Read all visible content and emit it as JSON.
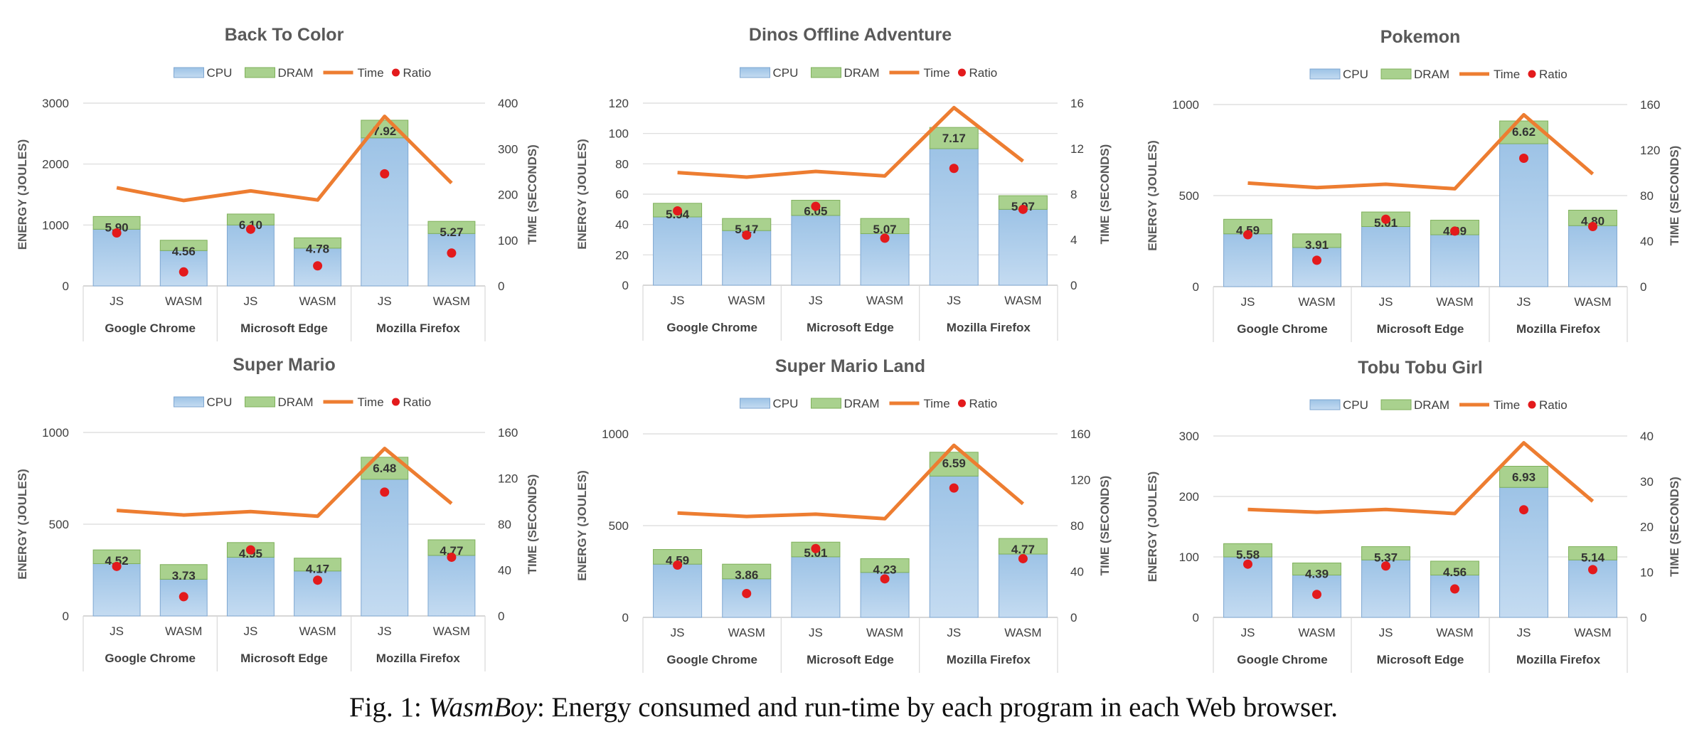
{
  "caption": {
    "prefix": "Fig. 1: ",
    "italic": "WasmBoy",
    "rest": ": Energy consumed and run-time by each program in each Web browser."
  },
  "legend": [
    "CPU",
    "DRAM",
    "Time",
    "Ratio"
  ],
  "colors": {
    "cpu": "#9dc3e6",
    "cpu_edge": "#7fa7d1",
    "dram": "#a9d18e",
    "dram_edge": "#7fb05b",
    "time": "#ed7d31",
    "ratio": "#e31a1c"
  },
  "chart_data": [
    {
      "type": "bar",
      "title": "Back To Color",
      "categories": [
        "JS",
        "WASM",
        "JS",
        "WASM",
        "JS",
        "WASM"
      ],
      "groups": [
        "Google Chrome",
        "Microsoft Edge",
        "Mozilla Firefox"
      ],
      "ylabel": "ENERGY (JOULES)",
      "y2label": "TIME (SECONDS)",
      "ylim": [
        0,
        3000
      ],
      "yticks": [
        0,
        1000,
        2000,
        3000
      ],
      "y2lim": [
        0,
        400
      ],
      "y2ticks": [
        0,
        100,
        200,
        300,
        400
      ],
      "series": [
        {
          "name": "CPU",
          "values": [
            930,
            580,
            1000,
            620,
            2430,
            860
          ]
        },
        {
          "name": "DRAM",
          "values": [
            210,
            170,
            180,
            170,
            290,
            200
          ]
        },
        {
          "name": "Time",
          "values": [
            215,
            187,
            208,
            188,
            371,
            225
          ]
        },
        {
          "name": "Ratio",
          "values": [
            5.9,
            4.56,
            6.1,
            4.78,
            7.92,
            5.27
          ]
        }
      ],
      "ratio_y": [
        870,
        230,
        930,
        330,
        1840,
        540
      ]
    },
    {
      "type": "bar",
      "title": "Dinos Offline Adventure",
      "categories": [
        "JS",
        "WASM",
        "JS",
        "WASM",
        "JS",
        "WASM"
      ],
      "groups": [
        "Google Chrome",
        "Microsoft Edge",
        "Mozilla Firefox"
      ],
      "ylabel": "ENERGY (JOULES)",
      "y2label": "TIME (SECONDS)",
      "ylim": [
        0,
        120
      ],
      "yticks": [
        0,
        20,
        40,
        60,
        80,
        100,
        120
      ],
      "y2lim": [
        0,
        16
      ],
      "y2ticks": [
        0,
        4,
        8,
        12,
        16
      ],
      "series": [
        {
          "name": "CPU",
          "values": [
            45,
            36,
            46,
            34,
            90,
            50
          ]
        },
        {
          "name": "DRAM",
          "values": [
            9,
            8,
            10,
            10,
            14,
            9
          ]
        },
        {
          "name": "Time",
          "values": [
            9.9,
            9.5,
            10.0,
            9.6,
            15.6,
            10.9
          ]
        },
        {
          "name": "Ratio",
          "values": [
            5.94,
            5.17,
            6.05,
            5.07,
            7.17,
            5.97
          ]
        }
      ],
      "ratio_y": [
        49,
        33,
        52,
        31,
        77,
        50
      ]
    },
    {
      "type": "bar",
      "title": "Pokemon",
      "categories": [
        "JS",
        "WASM",
        "JS",
        "WASM",
        "JS",
        "WASM"
      ],
      "groups": [
        "Google Chrome",
        "Microsoft Edge",
        "Mozilla Firefox"
      ],
      "ylabel": "ENERGY (JOULES)",
      "y2label": "TIME (SECONDS)",
      "ylim": [
        0,
        1000
      ],
      "yticks": [
        0,
        500,
        1000
      ],
      "y2lim": [
        0,
        160
      ],
      "y2ticks": [
        0,
        40,
        80,
        120,
        160
      ],
      "series": [
        {
          "name": "CPU",
          "values": [
            290,
            215,
            330,
            285,
            785,
            335
          ]
        },
        {
          "name": "DRAM",
          "values": [
            80,
            75,
            80,
            80,
            125,
            85
          ]
        },
        {
          "name": "Time",
          "values": [
            91,
            87,
            90,
            86,
            151,
            99
          ]
        },
        {
          "name": "Ratio",
          "values": [
            4.59,
            3.91,
            5.01,
            4.69,
            6.62,
            4.8
          ]
        }
      ],
      "ratio_y": [
        285,
        145,
        370,
        305,
        705,
        330
      ]
    },
    {
      "type": "bar",
      "title": "Super Mario",
      "categories": [
        "JS",
        "WASM",
        "JS",
        "WASM",
        "JS",
        "WASM"
      ],
      "groups": [
        "Google Chrome",
        "Microsoft Edge",
        "Mozilla Firefox"
      ],
      "ylabel": "ENERGY (JOULES)",
      "y2label": "TIME (SECONDS)",
      "ylim": [
        0,
        1000
      ],
      "yticks": [
        0,
        500,
        1000
      ],
      "y2lim": [
        0,
        160
      ],
      "y2ticks": [
        0,
        40,
        80,
        120,
        160
      ],
      "series": [
        {
          "name": "CPU",
          "values": [
            285,
            200,
            320,
            245,
            745,
            330
          ]
        },
        {
          "name": "DRAM",
          "values": [
            75,
            80,
            80,
            70,
            120,
            85
          ]
        },
        {
          "name": "Time",
          "values": [
            92,
            88,
            91,
            87,
            146,
            98
          ]
        },
        {
          "name": "Ratio",
          "values": [
            4.52,
            3.73,
            4.95,
            4.17,
            6.48,
            4.77
          ]
        }
      ],
      "ratio_y": [
        270,
        105,
        360,
        195,
        675,
        320
      ]
    },
    {
      "type": "bar",
      "title": "Super Mario Land",
      "categories": [
        "JS",
        "WASM",
        "JS",
        "WASM",
        "JS",
        "WASM"
      ],
      "groups": [
        "Google Chrome",
        "Microsoft Edge",
        "Mozilla Firefox"
      ],
      "ylabel": "ENERGY (JOULES)",
      "y2label": "TIME (SECONDS)",
      "ylim": [
        0,
        1000
      ],
      "yticks": [
        0,
        500,
        1000
      ],
      "y2lim": [
        0,
        160
      ],
      "y2ticks": [
        0,
        40,
        80,
        120,
        160
      ],
      "series": [
        {
          "name": "CPU",
          "values": [
            290,
            210,
            330,
            245,
            770,
            345
          ]
        },
        {
          "name": "DRAM",
          "values": [
            80,
            80,
            80,
            75,
            130,
            85
          ]
        },
        {
          "name": "Time",
          "values": [
            91,
            88,
            90,
            86,
            150,
            99
          ]
        },
        {
          "name": "Ratio",
          "values": [
            4.59,
            3.86,
            5.01,
            4.23,
            6.59,
            4.77
          ]
        }
      ],
      "ratio_y": [
        285,
        130,
        375,
        210,
        705,
        320
      ]
    },
    {
      "type": "bar",
      "title": "Tobu Tobu Girl",
      "categories": [
        "JS",
        "WASM",
        "JS",
        "WASM",
        "JS",
        "WASM"
      ],
      "groups": [
        "Google Chrome",
        "Microsoft Edge",
        "Mozilla Firefox"
      ],
      "ylabel": "ENERGY (JOULES)",
      "y2label": "TIME (SECONDS)",
      "ylim": [
        0,
        300
      ],
      "yticks": [
        0,
        100,
        200,
        300
      ],
      "y2lim": [
        0,
        40
      ],
      "y2ticks": [
        0,
        10,
        20,
        30,
        40
      ],
      "series": [
        {
          "name": "CPU",
          "values": [
            100,
            70,
            95,
            70,
            215,
            95
          ]
        },
        {
          "name": "DRAM",
          "values": [
            22,
            20,
            22,
            23,
            35,
            22
          ]
        },
        {
          "name": "Time",
          "values": [
            23.8,
            23.2,
            23.8,
            22.9,
            38.5,
            25.6
          ]
        },
        {
          "name": "Ratio",
          "values": [
            5.58,
            4.39,
            5.37,
            4.56,
            6.93,
            5.14
          ]
        }
      ],
      "ratio_y": [
        88,
        38,
        85,
        47,
        178,
        79
      ]
    }
  ]
}
